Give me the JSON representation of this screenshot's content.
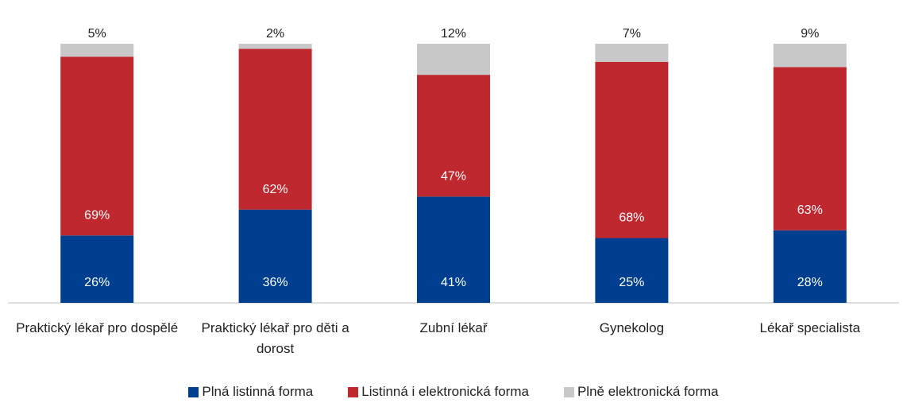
{
  "chart_data": {
    "type": "stacked-bar",
    "categories": [
      "Praktický lékař pro dospělé",
      "Praktický lékař pro děti a dorost",
      "Zubní lékař",
      "Gynekolog",
      "Lékař specialista"
    ],
    "series": [
      {
        "name": "Plná listinná forma",
        "color": "#003f8f",
        "values": [
          26,
          36,
          41,
          25,
          28
        ],
        "value_labels": [
          "26%",
          "36%",
          "41%",
          "25%",
          "28%"
        ]
      },
      {
        "name": "Listinná i elektronická forma",
        "color": "#c0282f",
        "values": [
          69,
          62,
          47,
          68,
          63
        ],
        "value_labels": [
          "69%",
          "62%",
          "47%",
          "68%",
          "63%"
        ]
      },
      {
        "name": "Plně elektronická forma",
        "color": "#c8c8c8",
        "values": [
          5,
          2,
          12,
          7,
          9
        ],
        "value_labels": [
          "5%",
          "2%",
          "12%",
          "7%",
          "9%"
        ]
      }
    ],
    "ylim": [
      0,
      100
    ],
    "legend": "bottom"
  }
}
